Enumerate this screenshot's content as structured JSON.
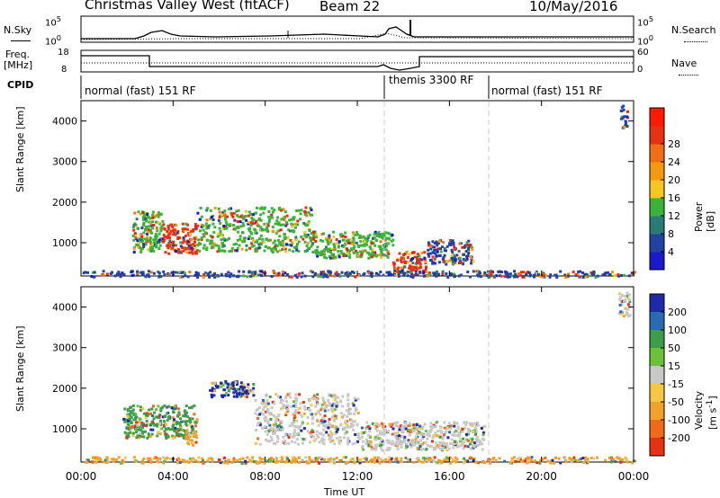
{
  "header": {
    "radar": "Christmas Valley West (fitACF)",
    "beam": "Beam 22",
    "date": "10/May/2016"
  },
  "strip1": {
    "left_label": "N.Sky",
    "left_ticks": [
      "10^5",
      "10^0"
    ],
    "right_label": "N.Search",
    "right_ticks": [
      "10^5",
      "10^0"
    ]
  },
  "strip2": {
    "left_label_1": "Freq.",
    "left_label_2": "[MHz]",
    "left_ticks": [
      "18",
      "8"
    ],
    "right_label": "Nave",
    "right_ticks": [
      "60",
      "0"
    ]
  },
  "cpid": {
    "label": "CPID",
    "modes": [
      {
        "text": "normal (fast) 151 RF",
        "start_hour": 0
      },
      {
        "text": "themis 3300 RF",
        "start_hour": 13.5
      },
      {
        "text": "normal (fast) 151 RF",
        "start_hour": 18
      }
    ]
  },
  "time_axis": {
    "label": "Time UT",
    "ticks": [
      "00:00",
      "04:00",
      "08:00",
      "12:00",
      "16:00",
      "20:00",
      "00:00"
    ]
  },
  "chart_data": [
    {
      "type": "heatmap",
      "name": "power",
      "ylabel": "Slant Range [km]",
      "xlim": [
        0,
        24
      ],
      "ylim": [
        180,
        4500
      ],
      "yticks": [
        "1000",
        "2000",
        "3000",
        "4000"
      ],
      "colorbar": {
        "label": "Power [dB]",
        "ticks": [
          "4",
          "8",
          "12",
          "16",
          "20",
          "24",
          "28"
        ],
        "colors": [
          "#1a1acd",
          "#23419f",
          "#2a7a76",
          "#3bb33b",
          "#f5c71f",
          "#f59a10",
          "#f06e14",
          "#e83012",
          "#ff1a00"
        ]
      },
      "regions": [
        {
          "x": [
            0.0,
            24.0
          ],
          "y": [
            180,
            330
          ],
          "level": "low"
        },
        {
          "x": [
            2.2,
            3.5
          ],
          "y": [
            800,
            1800
          ],
          "level": "mid"
        },
        {
          "x": [
            3.5,
            5.0
          ],
          "y": [
            750,
            1500
          ],
          "level": "high"
        },
        {
          "x": [
            5.0,
            10.0
          ],
          "y": [
            800,
            1900
          ],
          "level": "mid"
        },
        {
          "x": [
            10.0,
            13.5
          ],
          "y": [
            650,
            1300
          ],
          "level": "mid"
        },
        {
          "x": [
            13.5,
            15.0
          ],
          "y": [
            300,
            800
          ],
          "level": "high"
        },
        {
          "x": [
            15.0,
            17.0
          ],
          "y": [
            500,
            1100
          ],
          "level": "low"
        },
        {
          "x": [
            23.4,
            23.7
          ],
          "y": [
            3800,
            4400
          ],
          "level": "low"
        }
      ]
    },
    {
      "type": "heatmap",
      "name": "velocity",
      "ylabel": "Slant Range [km]",
      "xlim": [
        0,
        24
      ],
      "ylim": [
        180,
        4500
      ],
      "yticks": [
        "1000",
        "2000",
        "3000",
        "4000"
      ],
      "colorbar": {
        "label": "Velocity [m s^-1]",
        "ticks": [
          "200",
          "100",
          "50",
          "15",
          "-15",
          "-50",
          "-100",
          "-200"
        ],
        "colors": [
          "#1f2aa8",
          "#2a6ab0",
          "#3d9e4a",
          "#6cc03a",
          "#c8c8c8",
          "#f5c742",
          "#f2a12a",
          "#f06b18",
          "#e83012"
        ]
      },
      "regions": [
        {
          "x": [
            0.0,
            24.0
          ],
          "y": [
            180,
            330
          ],
          "level": "negative"
        },
        {
          "x": [
            1.8,
            5.0
          ],
          "y": [
            800,
            1600
          ],
          "level": "positive"
        },
        {
          "x": [
            4.5,
            5.0
          ],
          "y": [
            600,
            1000
          ],
          "level": "negative"
        },
        {
          "x": [
            5.5,
            7.5
          ],
          "y": [
            1800,
            2200
          ],
          "level": "strong-positive"
        },
        {
          "x": [
            7.5,
            12.0
          ],
          "y": [
            650,
            1900
          ],
          "level": "zero"
        },
        {
          "x": [
            12.0,
            17.5
          ],
          "y": [
            500,
            1200
          ],
          "level": "zero"
        },
        {
          "x": [
            23.3,
            23.8
          ],
          "y": [
            3800,
            4400
          ],
          "level": "zero"
        }
      ]
    }
  ]
}
